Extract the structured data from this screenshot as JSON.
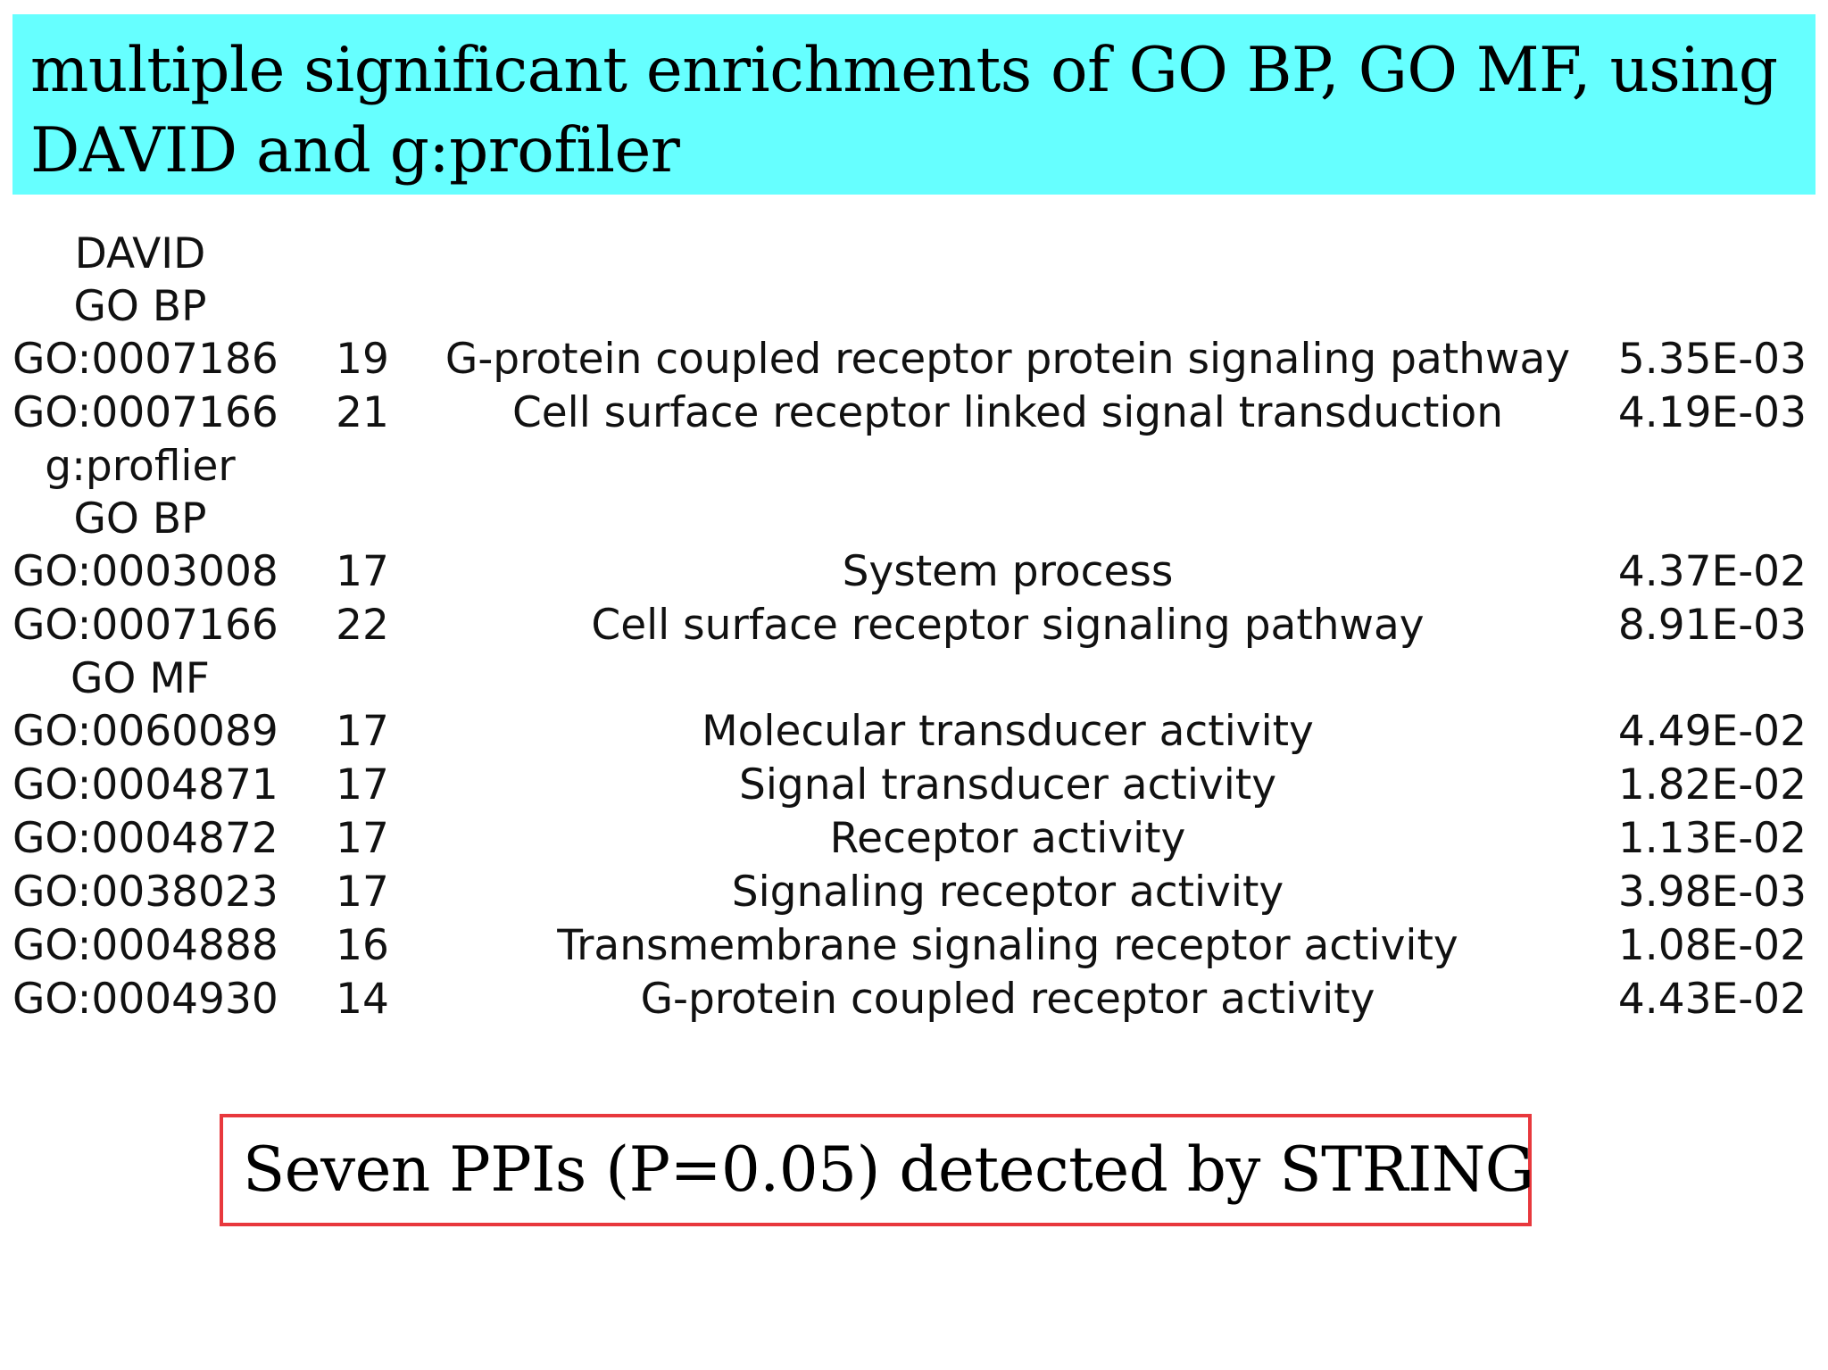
{
  "banner": {
    "line1": "multiple significant enrichments of GO BP,  GO MF,  using",
    "line2": "DAVID and g:profiler",
    "background": "#66ffff"
  },
  "results": {
    "sections": [
      {
        "labels": [
          "DAVID",
          "GO BP"
        ],
        "rows": [
          {
            "id": "GO:0007186",
            "count": "19",
            "term": "G-protein coupled receptor protein signaling pathway",
            "p": "5.35E-03"
          },
          {
            "id": "GO:0007166",
            "count": "21",
            "term": "Cell surface receptor linked signal transduction",
            "p": "4.19E-03"
          }
        ]
      },
      {
        "labels": [
          "g:proflier",
          "GO BP"
        ],
        "rows": [
          {
            "id": "GO:0003008",
            "count": "17",
            "term": "System process",
            "p": "4.37E-02"
          },
          {
            "id": "GO:0007166",
            "count": "22",
            "term": "Cell surface receptor signaling pathway",
            "p": "8.91E-03"
          }
        ]
      },
      {
        "labels": [
          "GO MF"
        ],
        "rows": [
          {
            "id": "GO:0060089",
            "count": "17",
            "term": "Molecular transducer activity",
            "p": "4.49E-02"
          },
          {
            "id": "GO:0004871",
            "count": "17",
            "term": "Signal transducer activity",
            "p": "1.82E-02"
          },
          {
            "id": "GO:0004872",
            "count": "17",
            "term": "Receptor activity",
            "p": "1.13E-02"
          },
          {
            "id": "GO:0038023",
            "count": "17",
            "term": "Signaling receptor activity",
            "p": "3.98E-03"
          },
          {
            "id": "GO:0004888",
            "count": "16",
            "term": "Transmembrane signaling receptor activity",
            "p": "1.08E-02"
          },
          {
            "id": "GO:0004930",
            "count": "14",
            "term": "G-protein coupled receptor activity",
            "p": "4.43E-02"
          }
        ]
      }
    ]
  },
  "ppi_box": {
    "text": "Seven PPIs (P=0.05) detected by STRING",
    "border_color": "#e8383d"
  }
}
